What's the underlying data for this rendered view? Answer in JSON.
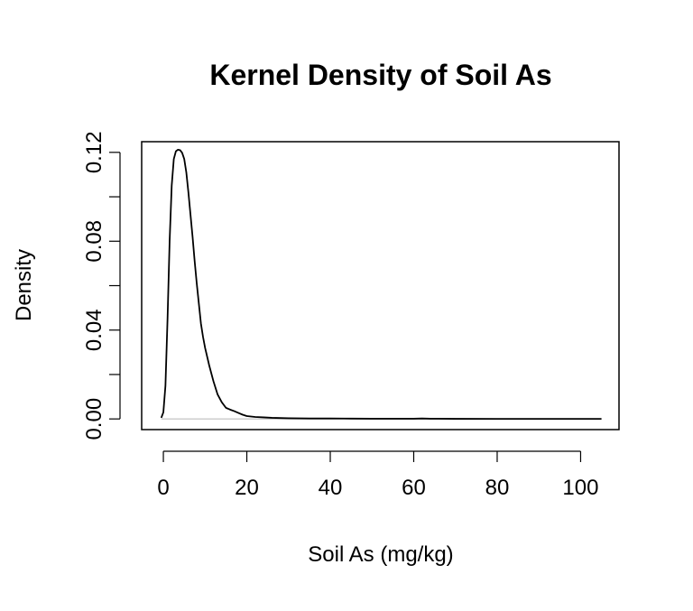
{
  "chart_data": {
    "type": "line",
    "title": "Kernel Density of Soil As",
    "xlabel": "Soil As (mg/kg)",
    "ylabel": "Density",
    "xlim": [
      -5.2,
      109.2
    ],
    "ylim": [
      -0.0048,
      0.1248
    ],
    "x_ticks": [
      0,
      20,
      40,
      60,
      80,
      100
    ],
    "x_tick_labels": [
      "0",
      "20",
      "40",
      "60",
      "80",
      "100"
    ],
    "y_ticks": [
      0.0,
      0.02,
      0.04,
      0.06,
      0.08,
      0.1,
      0.12
    ],
    "y_tick_labels": [
      "0.00",
      "",
      "0.04",
      "",
      "0.08",
      "",
      "0.12"
    ],
    "baseline": 0,
    "grid": false,
    "legend": "none",
    "series": [
      {
        "x": [
          -0.5,
          0,
          0.5,
          1,
          1.5,
          2,
          2.5,
          3,
          3.5,
          4,
          4.5,
          5,
          5.5,
          6,
          6.5,
          7,
          7.5,
          8,
          8.5,
          9,
          9.5,
          10,
          11,
          12,
          13,
          14,
          15,
          16,
          17,
          18,
          19,
          20,
          22,
          24,
          26,
          28,
          30,
          35,
          40,
          45,
          50,
          55,
          60,
          62,
          64,
          66,
          70,
          80,
          90,
          100,
          105
        ],
        "y": [
          0.0005,
          0.003,
          0.015,
          0.045,
          0.08,
          0.105,
          0.117,
          0.1205,
          0.1212,
          0.121,
          0.1198,
          0.117,
          0.111,
          0.102,
          0.092,
          0.082,
          0.071,
          0.061,
          0.052,
          0.043,
          0.037,
          0.032,
          0.024,
          0.017,
          0.011,
          0.0075,
          0.005,
          0.0042,
          0.0035,
          0.0027,
          0.0019,
          0.0013,
          0.0009,
          0.0007,
          0.0005,
          0.0004,
          0.0003,
          0.0002,
          0.0002,
          0.00015,
          0.0001,
          0.0001,
          0.0001,
          0.0002,
          0.0001,
          0.0001,
          5e-05,
          3e-05,
          2e-05,
          1e-05,
          1e-05
        ]
      }
    ]
  }
}
